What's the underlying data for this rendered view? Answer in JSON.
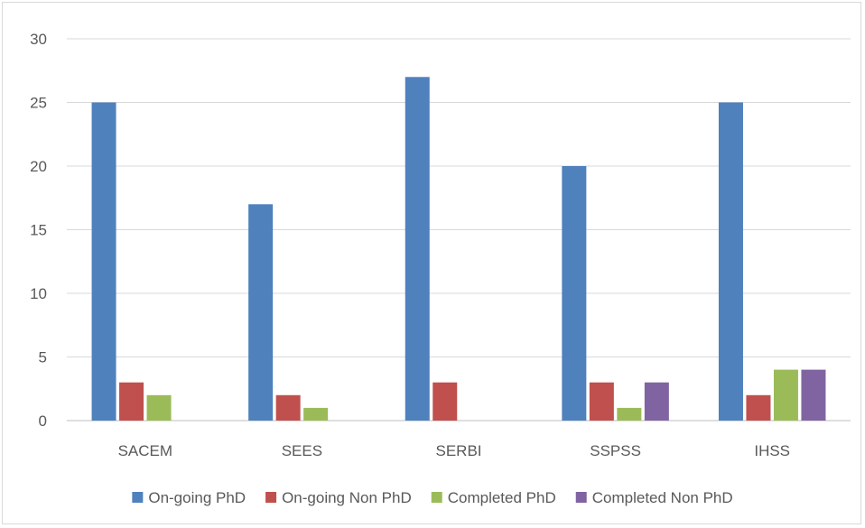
{
  "chart_data": {
    "type": "bar",
    "title": "",
    "xlabel": "",
    "ylabel": "",
    "categories": [
      "SACEM",
      "SEES",
      "SERBI",
      "SSPSS",
      "IHSS"
    ],
    "ylim": [
      0,
      30
    ],
    "yticks": [
      0,
      5,
      10,
      15,
      20,
      25,
      30
    ],
    "grid": true,
    "legend_position": "bottom",
    "series": [
      {
        "name": "On-going PhD",
        "color": "#4f81bd",
        "values": [
          25,
          17,
          27,
          20,
          25
        ]
      },
      {
        "name": "On-going Non PhD",
        "color": "#c0504d",
        "values": [
          3,
          2,
          3,
          3,
          2
        ]
      },
      {
        "name": "Completed PhD",
        "color": "#9bbb59",
        "values": [
          2,
          1,
          0,
          1,
          4
        ]
      },
      {
        "name": "Completed Non PhD",
        "color": "#8064a2",
        "values": [
          0,
          0,
          0,
          3,
          4
        ]
      }
    ]
  }
}
